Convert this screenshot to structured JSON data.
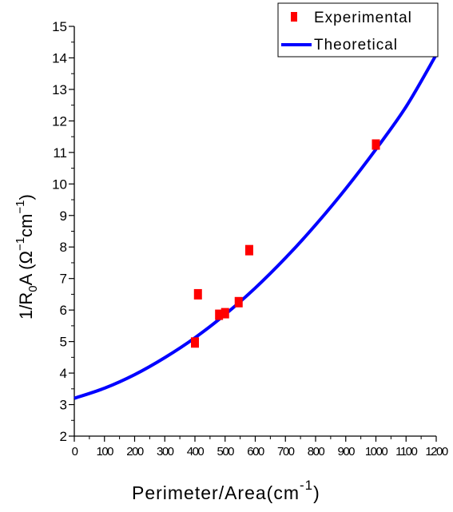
{
  "chart_data": {
    "type": "scatter",
    "xlabel": {
      "main": "Perimeter/Area",
      "unit_open": "(cm",
      "unit_exp": "-1",
      "unit_close": ")"
    },
    "ylabel": {
      "prefix": "1/R",
      "sub": "0",
      "mid": "A (Ω",
      "exp1": "−1",
      "cm": "cm",
      "exp2": "−1",
      "close": ")"
    },
    "xlim": [
      0,
      1200
    ],
    "ylim": [
      2,
      15
    ],
    "x_ticks": [
      "0",
      "100",
      "200",
      "300",
      "400",
      "500",
      "600",
      "700",
      "800",
      "900",
      "1000",
      "1100",
      "1200"
    ],
    "y_ticks": [
      "2",
      "3",
      "4",
      "5",
      "6",
      "7",
      "8",
      "9",
      "10",
      "11",
      "12",
      "13",
      "14",
      "15"
    ],
    "legend_position": "top-right",
    "grid": false,
    "series": [
      {
        "name": "Experimental",
        "kind": "scatter",
        "marker": "square",
        "color": "#ff0000",
        "points": [
          {
            "x": 400,
            "y": 4.97
          },
          {
            "x": 410,
            "y": 6.5
          },
          {
            "x": 480,
            "y": 5.85
          },
          {
            "x": 500,
            "y": 5.9
          },
          {
            "x": 545,
            "y": 6.25
          },
          {
            "x": 580,
            "y": 7.9
          },
          {
            "x": 1000,
            "y": 11.25
          }
        ]
      },
      {
        "name": "Theoretical",
        "kind": "line",
        "color": "#0000ff",
        "x": [
          0,
          100,
          200,
          300,
          400,
          500,
          600,
          700,
          800,
          900,
          1000,
          1100,
          1200
        ],
        "y": [
          3.2,
          3.52,
          3.95,
          4.49,
          5.12,
          5.86,
          6.7,
          7.65,
          8.7,
          9.85,
          11.1,
          12.45,
          14.1
        ]
      }
    ]
  }
}
